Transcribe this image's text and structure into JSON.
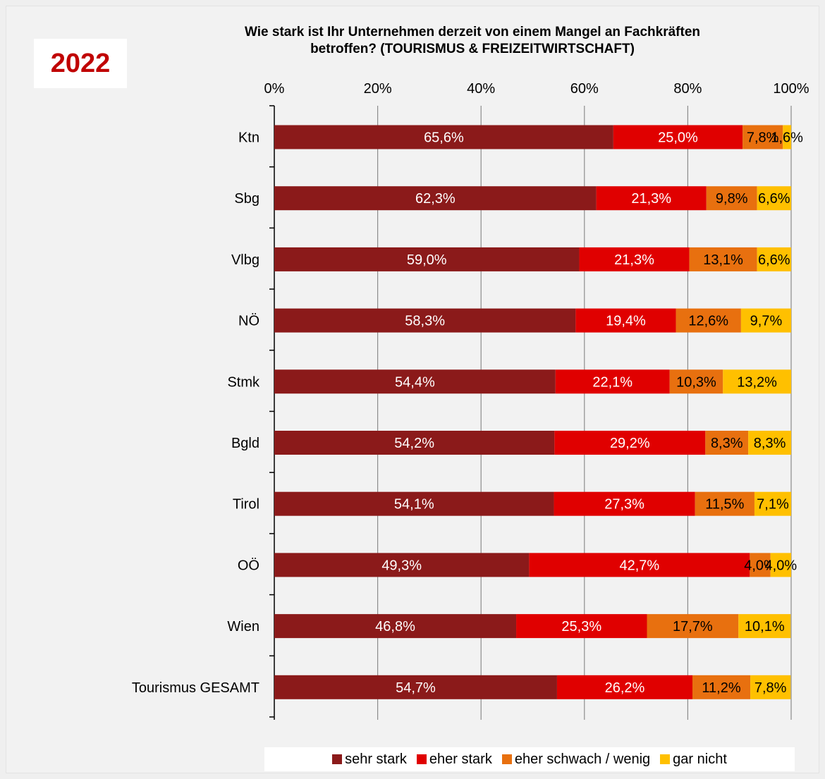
{
  "badge": {
    "year": "2022"
  },
  "chart_data": {
    "type": "bar",
    "orientation": "horizontal",
    "stacked": true,
    "title_lines": [
      "Wie stark ist Ihr Unternehmen derzeit von einem Mangel an Fachkräften",
      "betroffen? (TOURISMUS & FREIZEITWIRTSCHAFT)"
    ],
    "categories": [
      "Ktn",
      "Sbg",
      "Vlbg",
      "NÖ",
      "Stmk",
      "Bgld",
      "Tirol",
      "OÖ",
      "Wien",
      "Tourismus GESAMT"
    ],
    "series": [
      {
        "name": "sehr stark",
        "color": "#8b1a1a",
        "values": [
          65.6,
          62.3,
          59.0,
          58.3,
          54.4,
          54.2,
          54.1,
          49.3,
          46.8,
          54.7
        ],
        "labels": [
          "65,6%",
          "62,3%",
          "59,0%",
          "58,3%",
          "54,4%",
          "54,2%",
          "54,1%",
          "49,3%",
          "46,8%",
          "54,7%"
        ]
      },
      {
        "name": "eher stark",
        "color": "#e00000",
        "values": [
          25.0,
          21.3,
          21.3,
          19.4,
          22.1,
          29.2,
          27.3,
          42.7,
          25.3,
          26.2
        ],
        "labels": [
          "25,0%",
          "21,3%",
          "21,3%",
          "19,4%",
          "22,1%",
          "29,2%",
          "27,3%",
          "42,7%",
          "25,3%",
          "26,2%"
        ]
      },
      {
        "name": "eher schwach / wenig",
        "color": "#e8700f",
        "values": [
          7.8,
          9.8,
          13.1,
          12.6,
          10.3,
          8.3,
          11.5,
          4.0,
          17.7,
          11.2
        ],
        "labels": [
          "7,8%",
          "9,8%",
          "13,1%",
          "12,6%",
          "10,3%",
          "8,3%",
          "11,5%",
          "4,0%",
          "17,7%",
          "11,2%"
        ]
      },
      {
        "name": "gar nicht",
        "color": "#ffc000",
        "values": [
          1.6,
          6.6,
          6.6,
          9.7,
          13.2,
          8.3,
          7.1,
          4.0,
          10.1,
          7.8
        ],
        "labels": [
          "1,6%",
          "6,6%",
          "6,6%",
          "9,7%",
          "13,2%",
          "8,3%",
          "7,1%",
          "4,0%",
          "10,1%",
          "7,8%"
        ]
      }
    ],
    "xlim": [
      0,
      100
    ],
    "x_ticks": [
      "0%",
      "20%",
      "40%",
      "60%",
      "80%",
      "100%"
    ],
    "grid": true,
    "legend_position": "bottom-right"
  }
}
